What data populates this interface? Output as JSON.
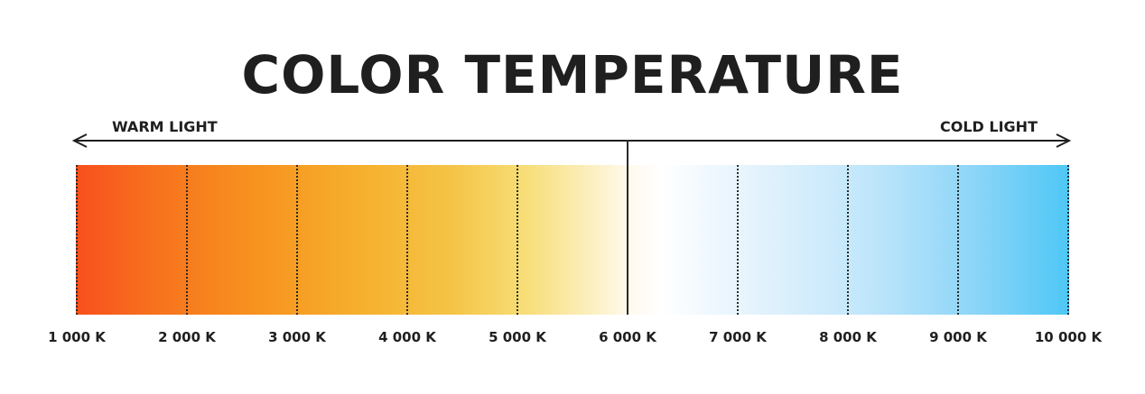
{
  "title": "COLOR TEMPERATURE",
  "warm_label": "WARM LIGHT",
  "cold_label": "COLD LIGHT",
  "scale": {
    "ticks": [
      "1 000 K",
      "2 000 K",
      "3 000 K",
      "4 000 K",
      "5 000 K",
      "6 000 K",
      "7 000 K",
      "8 000 K",
      "9 000 K",
      "10 000 K"
    ],
    "neutral_point": "6 000 K"
  },
  "colors": {
    "warm_end": "#f7501d",
    "neutral": "#ffffff",
    "cold_end": "#4ec7f5",
    "text": "#1f1f1f"
  }
}
